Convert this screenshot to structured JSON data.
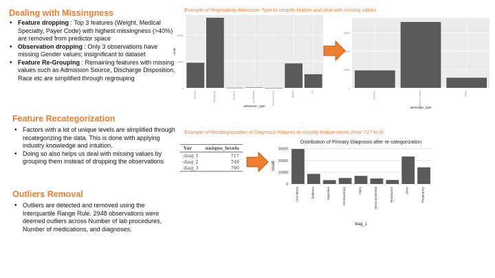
{
  "sections": {
    "missingness": {
      "title": "Dealing with Missingness",
      "bullets": [
        {
          "bold": "Feature dropping",
          "rest": " : Top 3 features (Weight, Medical Specialty, Payer Code) with highest missingness (>40%) are removed from predictor space"
        },
        {
          "bold": "Observation dropping",
          "rest": " : Only 3 observations have missing Gender values; insignificant to dataset"
        },
        {
          "bold": "Feature Re-Grouping",
          "rest": " : Remaining features with missing values such as Admission Source, Discharge Disposition, Race etc are simplified through regrouping"
        }
      ]
    },
    "recategorization": {
      "title": "Feature Recategorization",
      "bullets": [
        "Factors with a lot of unique levels are simplified through recategorizing the data. This is done with applying industry knowledge and intuition.",
        "Doing so also helps us deal with missing values by grouping them instead of dropping the observations"
      ]
    },
    "outliers": {
      "title": "Outliers Removal",
      "bullets": [
        "Outliers are detected and removed using the Interquartile Range Rule. 2948 observations were deemed outliers across Number of lab procedures, Number of medications, and diagnoses."
      ]
    }
  },
  "captions": {
    "regroup": "Example of Regrouping Admission Type to simplify feature and deal with missing values",
    "recat": "Example of Recategorization of Diagnosis features to simplify feature levels (from 717 to 9)"
  },
  "colors": {
    "accent": "#ED7D31",
    "bar": "#595959",
    "panel": "#EBEBEB"
  },
  "diag_table": {
    "headers": [
      "Var",
      "unique_levels"
    ],
    "rows": [
      {
        "var": "diag_1",
        "value": "717"
      },
      {
        "var": "diag_2",
        "value": "749"
      },
      {
        "var": "diag_3",
        "value": "790"
      }
    ]
  },
  "chart_data": [
    {
      "type": "bar",
      "xlabel": "admission_type",
      "ylabel": "count",
      "categories": [
        "Elective",
        "Emergency",
        "Newborn",
        "Not Mapped",
        "Trauma Center",
        "Urgent",
        "NA"
      ],
      "values": [
        19000,
        53000,
        100,
        300,
        20,
        18500,
        10300
      ],
      "ylim": [
        0,
        55000
      ],
      "yticks": [
        0,
        20000,
        40000
      ],
      "grid": true
    },
    {
      "type": "bar",
      "xlabel": "admission_type",
      "ylabel": "",
      "categories": [
        "Elective",
        "Emergency / Urgent",
        "Other"
      ],
      "values": [
        19000,
        71500,
        11000
      ],
      "ylim": [
        0,
        76000
      ],
      "yticks": [
        0,
        20000,
        40000,
        60000
      ],
      "grid": true
    },
    {
      "type": "bar",
      "title": "Distribution of Primary Diagnosis after re-categorization",
      "xlabel": "diag_1",
      "ylabel": "count",
      "categories": [
        "Circulatory",
        "Diabetes",
        "Digestive",
        "Genitourinary",
        "Injury",
        "Musculoskeletal",
        "Neoplasms",
        "Other",
        "Respiratory"
      ],
      "values": [
        29800,
        8600,
        3300,
        5100,
        6900,
        4700,
        3400,
        23400,
        14200
      ],
      "ylim": [
        0,
        31000
      ],
      "yticks": [
        0,
        10000,
        20000,
        30000
      ],
      "ytick_labels": [
        "0",
        "10000",
        "20000",
        "30000"
      ],
      "grid": true
    }
  ]
}
